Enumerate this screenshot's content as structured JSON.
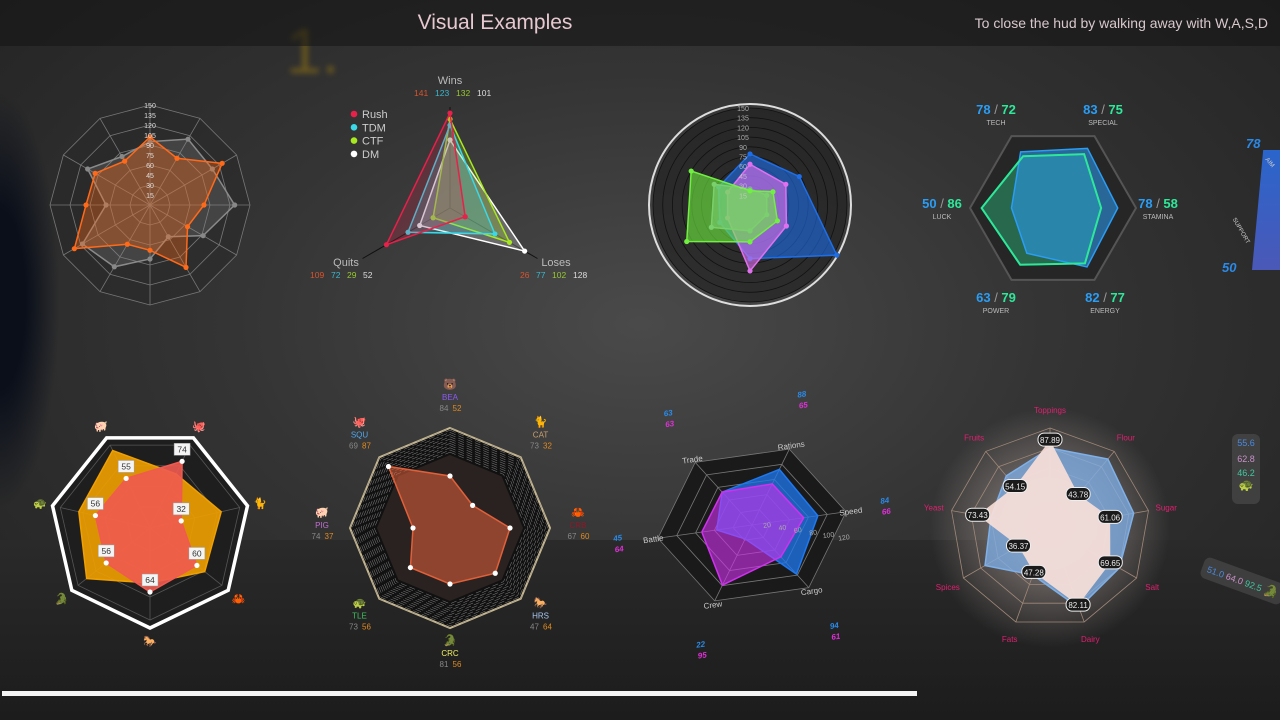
{
  "header": {
    "title": "Visual Examples",
    "hint": "To close the hud by walking away with W,A,S,D"
  },
  "scene": {
    "step_number": "1."
  },
  "progress": {
    "fraction": 0.715,
    "color": "#f4f4f4"
  },
  "chart_data": [
    {
      "id": "c1",
      "type": "radar",
      "axes_count": 12,
      "ticks": [
        "15",
        "30",
        "45",
        "60",
        "75",
        "90",
        "105",
        "120",
        "135",
        "150"
      ],
      "range": [
        0,
        150
      ],
      "series": [
        {
          "color": "#ff6a1a",
          "values": [
            102,
            81,
            125,
            81,
            65,
            108,
            68,
            68,
            131,
            96,
            95,
            76
          ]
        },
        {
          "color": "#8a8a8a",
          "values": [
            95,
            114,
            108,
            127,
            92,
            55,
            81,
            107,
            117,
            66,
            108,
            84
          ]
        }
      ]
    },
    {
      "id": "c2",
      "type": "radar",
      "range": [
        0,
        150
      ],
      "axes": [
        "Wins",
        "Loses",
        "Quits"
      ],
      "legend": [
        {
          "name": "Rush",
          "color": "#e8204a"
        },
        {
          "name": "TDM",
          "color": "#3ad8e8"
        },
        {
          "name": "CTF",
          "color": "#a8e820"
        },
        {
          "name": "DM",
          "color": "#ffffff"
        }
      ],
      "legend_placement": "top-left",
      "series": [
        {
          "name": "Rush",
          "color": "#e8204a",
          "label_color": "#d8542e",
          "values": [
            141,
            26,
            109
          ]
        },
        {
          "name": "TDM",
          "color": "#3ad8e8",
          "label_color": "#3ab8d0",
          "values": [
            123,
            77,
            72
          ]
        },
        {
          "name": "CTF",
          "color": "#a8e820",
          "label_color": "#98c830",
          "values": [
            132,
            102,
            29
          ]
        },
        {
          "name": "DM",
          "color": "#ffffff",
          "label_color": "#dddddd",
          "values": [
            101,
            128,
            52
          ]
        }
      ]
    },
    {
      "id": "c3",
      "type": "radar",
      "axes_count": 6,
      "range": [
        0,
        150
      ],
      "ticks": [
        "15",
        "30",
        "45",
        "60",
        "75",
        "90",
        "105",
        "120",
        "135",
        "150"
      ],
      "series": [
        {
          "color": "#1e6ee8",
          "values": [
            79,
            88,
            155,
            83,
            54,
            56
          ]
        },
        {
          "color": "#e070f0",
          "values": [
            63,
            64,
            65,
            102,
            40,
            40
          ]
        },
        {
          "color": "#8aa0b0",
          "values": [
            25,
            30,
            30,
            40,
            69,
            64
          ]
        },
        {
          "color": "#70f040",
          "values": [
            22,
            41,
            49,
            57,
            113,
            105
          ]
        }
      ]
    },
    {
      "id": "c4",
      "type": "radar",
      "range": [
        0,
        100
      ],
      "axes": [
        "TECH",
        "SPECIAL",
        "STAMINA",
        "ENERGY",
        "POWER",
        "LUCK"
      ],
      "series": [
        {
          "color": "#2a9df4",
          "values": [
            78,
            83,
            78,
            82,
            63,
            50
          ]
        },
        {
          "color": "#2ee89a",
          "values": [
            72,
            75,
            58,
            77,
            79,
            86
          ]
        }
      ]
    },
    {
      "id": "c5",
      "type": "radar",
      "range": [
        0,
        100
      ],
      "axes_icons": [
        "octopus-icon",
        "cat-icon",
        "crab-icon",
        "horse-icon",
        "crocodile-icon",
        "turtle-icon",
        "pig-icon"
      ],
      "series": [
        {
          "color": "#f0a000",
          "values": [
            60,
            73,
            70,
            55,
            81,
            73,
            86
          ]
        },
        {
          "color": "#f05a50",
          "values": [
            74,
            32,
            60,
            64,
            56,
            56,
            55
          ],
          "labels": [
            "74",
            "32",
            "60",
            "64",
            "56",
            "56",
            "55"
          ]
        }
      ]
    },
    {
      "id": "c6",
      "type": "radar",
      "range": [
        0,
        100
      ],
      "axes": [
        {
          "label": "BEA",
          "icon": "bear-icon",
          "color": "#8a5af0",
          "a": "84",
          "b": "52"
        },
        {
          "label": "CAT",
          "icon": "cat-icon",
          "color": "#c8a070",
          "a": "73",
          "b": "32"
        },
        {
          "label": "CRB",
          "icon": "crab-icon",
          "color": "#8a1a2a",
          "a": "67",
          "b": "60"
        },
        {
          "label": "HRS",
          "icon": "horse-icon",
          "color": "#a8c8f0",
          "a": "47",
          "b": "64"
        },
        {
          "label": "CRC",
          "icon": "crocodile-icon",
          "color": "#f0f060",
          "a": "81",
          "b": "56"
        },
        {
          "label": "TLE",
          "icon": "turtle-icon",
          "color": "#40c060",
          "a": "73",
          "b": "56"
        },
        {
          "label": "PIG",
          "icon": "pig-icon",
          "color": "#c070d0",
          "a": "74",
          "b": "37"
        },
        {
          "label": "SQU",
          "icon": "octopus-icon",
          "color": "#50a8f0",
          "a": "69",
          "b": "87"
        }
      ],
      "series": [
        {
          "color": "#e0603a",
          "values": [
            52,
            32,
            60,
            64,
            56,
            56,
            37,
            87
          ]
        }
      ]
    },
    {
      "id": "c7",
      "type": "radar",
      "range": [
        0,
        120
      ],
      "ticks": [
        "20",
        "40",
        "60",
        "80",
        "100",
        "120"
      ],
      "axes": [
        "Rations",
        "Speed",
        "Cargo",
        "Crew",
        "Battle",
        "Trade"
      ],
      "series": [
        {
          "color": "#1e78f0",
          "values": [
            88,
            84,
            94,
            22,
            45,
            63
          ]
        },
        {
          "color": "#d030f0",
          "values": [
            65,
            66,
            61,
            95,
            64,
            63
          ]
        }
      ]
    },
    {
      "id": "c8",
      "type": "radar",
      "range": [
        0,
        100
      ],
      "axes": [
        "Toppings",
        "Flour",
        "Sugar",
        "Salt",
        "Dairy",
        "Fats",
        "Spices",
        "Yeast",
        "Fruits"
      ],
      "series": [
        {
          "color": "#7fb0e8",
          "values": [
            80,
            90,
            85,
            80,
            85,
            50,
            75,
            60,
            68
          ]
        },
        {
          "color": "#fff0e8",
          "values": [
            87.89,
            43.78,
            61.06,
            69.65,
            82.11,
            47.28,
            36.37,
            73.43,
            54.15
          ],
          "labels": [
            "87.89",
            "43.78",
            "61.06",
            "69.65",
            "82.11",
            "47.28",
            "36.37",
            "73.43",
            "54.15"
          ]
        }
      ]
    }
  ],
  "edge_widgets": {
    "partial_chart": {
      "top_value": "78",
      "top_axis": "AIM",
      "bottom_value": "50",
      "bottom_axis": "SUPPORT"
    },
    "turtle_panel": {
      "values": [
        "55.6",
        "62.8",
        "46.2"
      ],
      "icon": "turtle-icon"
    },
    "croc_panel": {
      "values": [
        "51.0",
        "64.0",
        "92.5"
      ],
      "icon": "crocodile-icon"
    }
  }
}
